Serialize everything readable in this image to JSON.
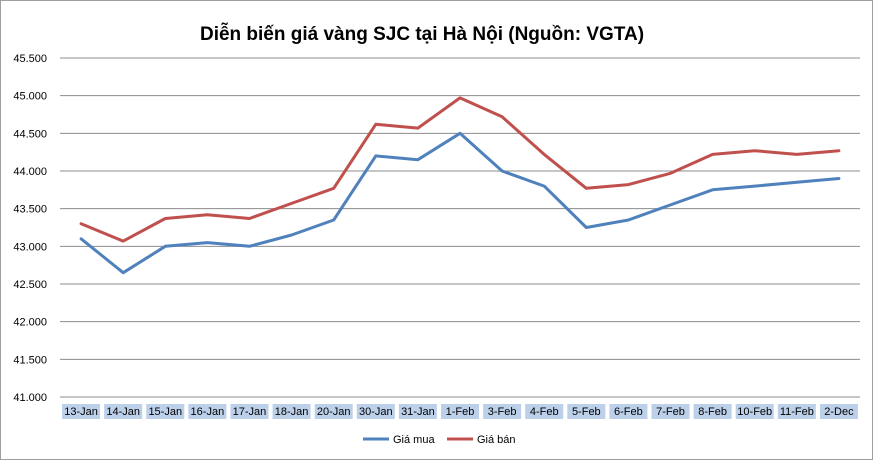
{
  "chart_data": {
    "type": "line",
    "title": "Diễn biến giá vàng SJC tại Hà Nội (Nguồn: VGTA)",
    "xlabel": "",
    "ylabel": "",
    "categories": [
      "13-Jan",
      "14-Jan",
      "15-Jan",
      "16-Jan",
      "17-Jan",
      "18-Jan",
      "20-Jan",
      "30-Jan",
      "31-Jan",
      "1-Feb",
      "3-Feb",
      "4-Feb",
      "5-Feb",
      "6-Feb",
      "7-Feb",
      "8-Feb",
      "10-Feb",
      "11-Feb",
      "2-Dec"
    ],
    "yticks": [
      "41.000",
      "41.500",
      "42.000",
      "42.500",
      "43.000",
      "43.500",
      "44.000",
      "44.500",
      "45.000",
      "45.500"
    ],
    "ylim": [
      41000,
      45500
    ],
    "grid": true,
    "legend": "bottom",
    "series": [
      {
        "name": "Giá mua",
        "color": "#4f81bd",
        "values": [
          43100,
          42650,
          43000,
          43050,
          43000,
          43150,
          43350,
          44200,
          44150,
          44500,
          44000,
          43800,
          43250,
          43350,
          43550,
          43750,
          43800,
          43850,
          43900
        ]
      },
      {
        "name": "Giá bán",
        "color": "#c0504d",
        "values": [
          43300,
          43070,
          43370,
          43420,
          43370,
          43570,
          43770,
          44620,
          44570,
          44970,
          44720,
          44220,
          43770,
          43820,
          43970,
          44220,
          44270,
          44220,
          44270
        ]
      }
    ]
  }
}
